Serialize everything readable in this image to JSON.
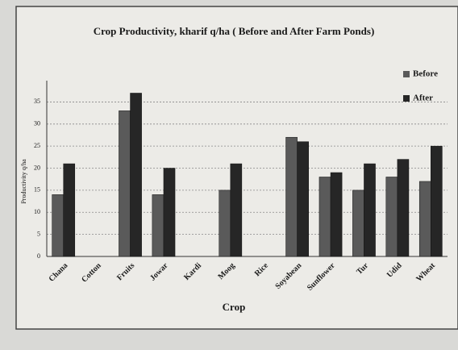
{
  "chart_data": {
    "type": "bar",
    "title": "Crop Productivity, kharif q/ha ( Before and After Farm Ponds)",
    "x_label": "Crop",
    "y_label": "Productivity q/ha",
    "categories": [
      "Chana",
      "Cotton",
      "Fruits",
      "Jowar",
      "Kardi",
      "Moog",
      "Rice",
      "Soyabean",
      "Sunflower",
      "Tur",
      "Udid",
      "Wheat"
    ],
    "series": [
      {
        "name": "Before",
        "color": "#5a5a5a",
        "values": [
          14,
          null,
          33,
          14,
          null,
          15,
          null,
          27,
          18,
          15,
          18,
          17
        ]
      },
      {
        "name": "After",
        "color": "#262626",
        "values": [
          21,
          null,
          37,
          20,
          null,
          21,
          null,
          26,
          19,
          21,
          22,
          25
        ]
      }
    ],
    "ylim": [
      0,
      38
    ],
    "yticks": [
      0,
      5,
      10,
      15,
      20,
      25,
      30,
      35
    ],
    "grid": true,
    "legend": "top-right"
  }
}
